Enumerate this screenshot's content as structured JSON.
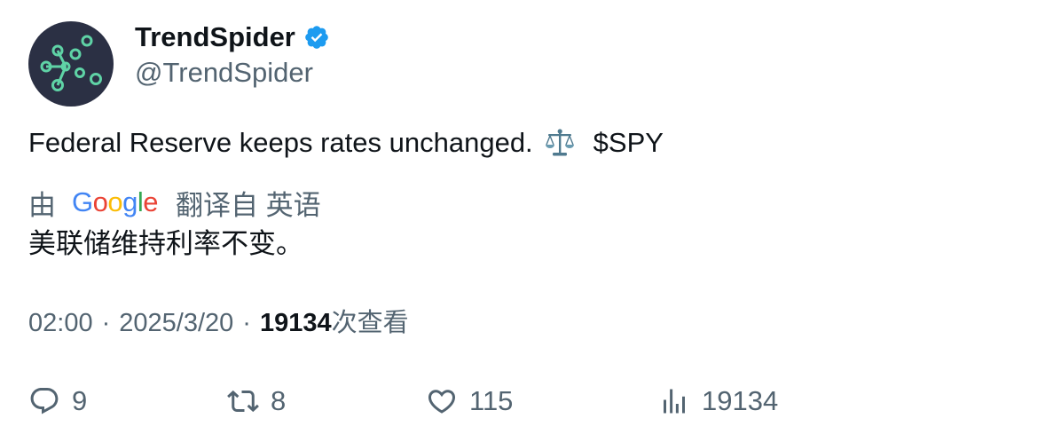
{
  "author": {
    "display_name": "TrendSpider",
    "handle": "@TrendSpider",
    "avatar_icon": "trendspider-logo-icon",
    "verified_icon": "verified-badge-icon",
    "verified_color": "#1d9bf0"
  },
  "tweet": {
    "text": "Federal Reserve keeps rates unchanged.",
    "emoji_icon": "balance-scale-icon",
    "cashtag": "$SPY"
  },
  "translation": {
    "prefix": "由",
    "provider": "Google",
    "suffix": "翻译自 英语",
    "text": "美联储维持利率不变。"
  },
  "meta": {
    "time": "02:00",
    "separator": "·",
    "date": "2025/3/20",
    "views_count": "19134",
    "views_label": "次查看"
  },
  "actions": {
    "reply": {
      "icon": "reply-icon",
      "count": "9"
    },
    "retweet": {
      "icon": "retweet-icon",
      "count": "8"
    },
    "like": {
      "icon": "heart-icon",
      "count": "115"
    },
    "views": {
      "icon": "analytics-icon",
      "count": "19134"
    }
  },
  "colors": {
    "text_primary": "#0f1419",
    "text_secondary": "#536471",
    "avatar_bg": "#2b3044",
    "avatar_accent": "#5fd3a6"
  }
}
